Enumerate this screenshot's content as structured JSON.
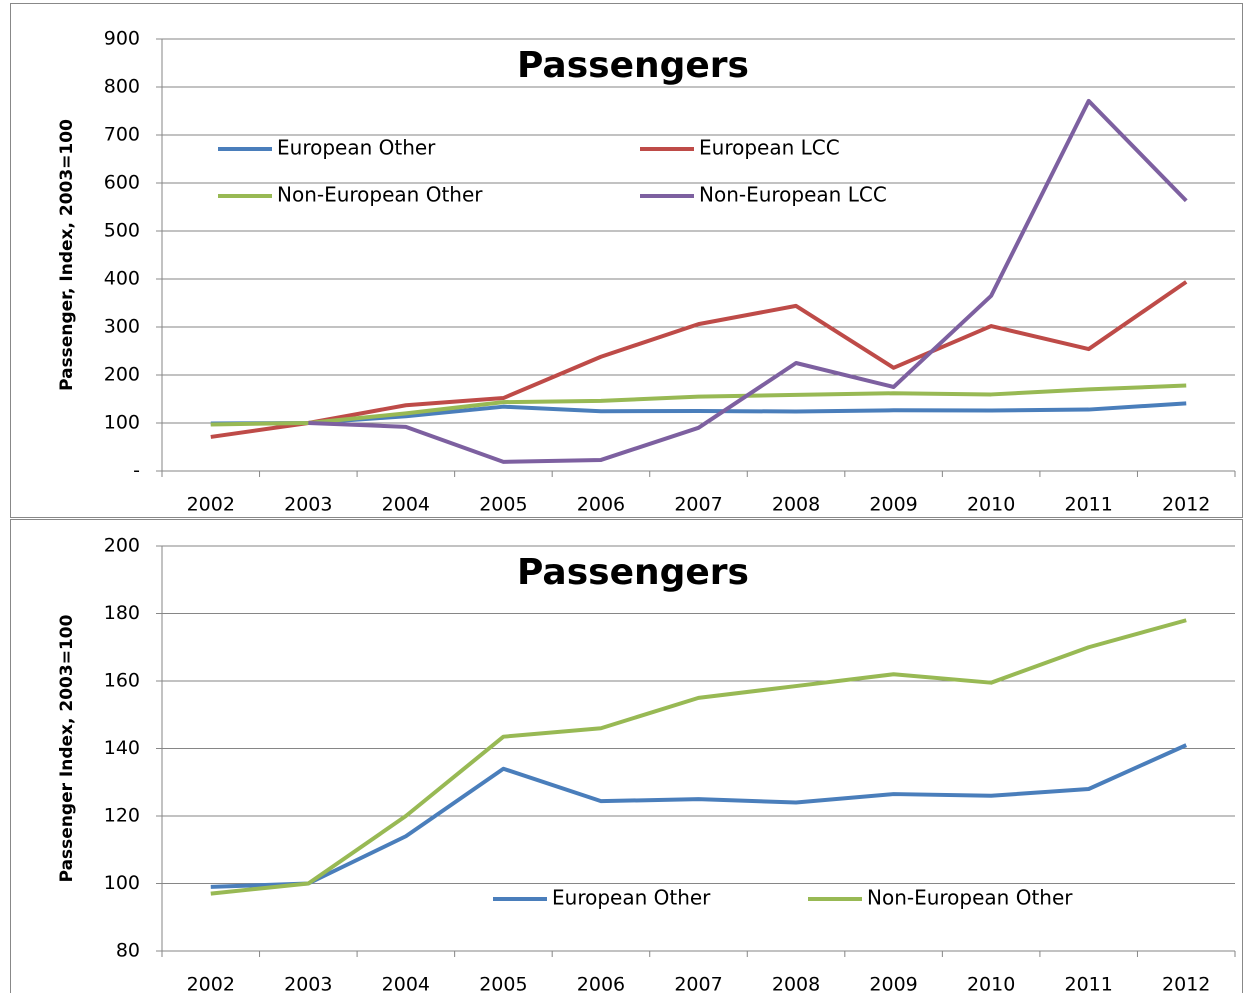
{
  "chart_data": [
    {
      "type": "line",
      "title": "Passengers",
      "y_label": "Passenger, Index, 2003=100",
      "categories": [
        "2002",
        "2003",
        "2004",
        "2005",
        "2006",
        "2007",
        "2008",
        "2009",
        "2010",
        "2011",
        "2012"
      ],
      "series": [
        {
          "name": "European Other",
          "color": "#4a7ebb",
          "values": [
            99,
            100,
            114,
            134,
            124.4,
            125,
            124,
            126.5,
            126,
            128,
            141
          ]
        },
        {
          "name": "European LCC",
          "color": "#be4b48",
          "values": [
            71,
            100,
            137,
            152,
            238,
            306,
            344,
            215,
            302,
            254,
            394
          ]
        },
        {
          "name": "Non-European Other",
          "color": "#98b954",
          "values": [
            97,
            100,
            120,
            143.5,
            146,
            155,
            158.5,
            162,
            159.5,
            170,
            178
          ]
        },
        {
          "name": "Non-European LCC",
          "color": "#7d60a0",
          "values": [
            null,
            100,
            92,
            19,
            23,
            90,
            225,
            175,
            365,
            771,
            563
          ]
        }
      ],
      "ylim": [
        0,
        900
      ],
      "yticks": [
        {
          "value": 0,
          "label": "-"
        },
        100,
        200,
        300,
        400,
        500,
        600,
        700,
        800,
        900
      ],
      "grid": true,
      "legend": "upper-left"
    },
    {
      "type": "line",
      "title": "Passengers",
      "y_label": "Passenger Index, 2003=100",
      "categories": [
        "2002",
        "2003",
        "2004",
        "2005",
        "2006",
        "2007",
        "2008",
        "2009",
        "2010",
        "2011",
        "2012"
      ],
      "series": [
        {
          "name": "European Other",
          "color": "#4a7ebb",
          "values": [
            99,
            100,
            114,
            134,
            124.4,
            125,
            124,
            126.5,
            126,
            128,
            141
          ]
        },
        {
          "name": "Non-European Other",
          "color": "#98b954",
          "values": [
            97,
            100,
            120,
            143.5,
            146,
            155,
            158.5,
            162,
            159.5,
            170,
            178
          ]
        }
      ],
      "ylim": [
        80,
        200
      ],
      "yticks": [
        80,
        100,
        120,
        140,
        160,
        180,
        200
      ],
      "grid": true,
      "legend": "lower-center"
    }
  ]
}
